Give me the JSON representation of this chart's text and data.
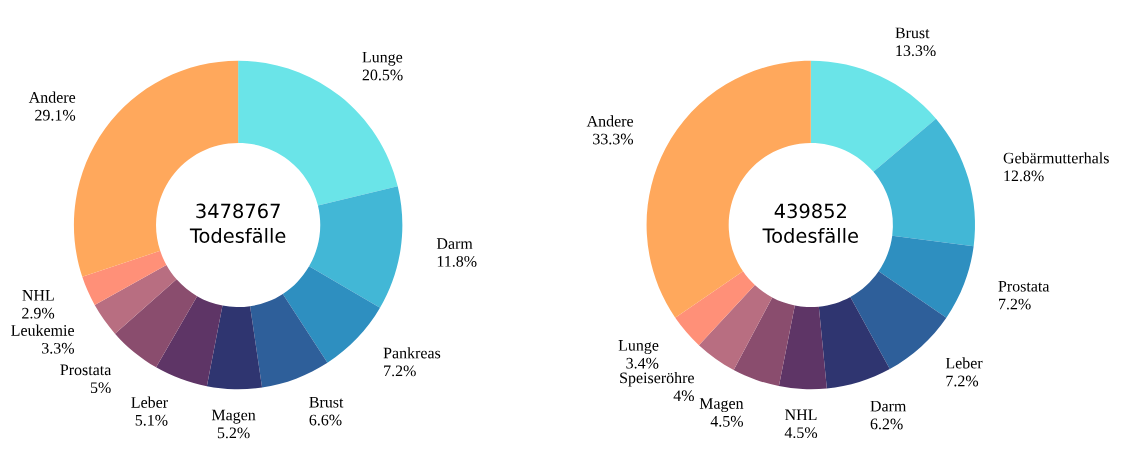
{
  "chart_data": [
    {
      "type": "donut",
      "categories": [
        "Lunge",
        "Darm",
        "Pankreas",
        "Brust",
        "Magen",
        "Leber",
        "Prostata",
        "Leukemie",
        "NHL",
        "Andere"
      ],
      "values": [
        20.5,
        11.8,
        7.2,
        6.6,
        5.2,
        5.1,
        5,
        3.3,
        2.9,
        29.1
      ],
      "value_labels": [
        "20.5%",
        "11.8%",
        "7.2%",
        "6.6%",
        "5.2%",
        "5.1%",
        "5%",
        "3.3%",
        "2.9%",
        "29.1%"
      ],
      "colors": [
        "#6ae4e8",
        "#42b7d6",
        "#2e8fc0",
        "#2e5f9a",
        "#2f3570",
        "#5e3566",
        "#8a4d6e",
        "#b86e81",
        "#ff9078",
        "#ffa85c"
      ],
      "annotations": [
        "3478767\nTodesfälle"
      ]
    },
    {
      "type": "donut",
      "categories": [
        "Brust",
        "Gebärmutterhals",
        "Prostata",
        "Leber",
        "Darm",
        "NHL",
        "Magen",
        "Speiseröhre",
        "Lunge",
        "Andere"
      ],
      "values": [
        13.3,
        12.8,
        7.2,
        7.2,
        6.2,
        4.5,
        4.5,
        4,
        3.4,
        33.3
      ],
      "value_labels": [
        "13.3%",
        "12.8%",
        "7.2%",
        "7.2%",
        "6.2%",
        "4.5%",
        "4.5%",
        "4%",
        "3.4%",
        "33.3%"
      ],
      "colors": [
        "#6ae4e8",
        "#42b7d6",
        "#2e8fc0",
        "#2e5f9a",
        "#2f3570",
        "#5e3566",
        "#8a4d6e",
        "#b86e81",
        "#ff9078",
        "#ffa85c"
      ],
      "annotations": [
        "439852\nTodesfälle"
      ]
    }
  ]
}
